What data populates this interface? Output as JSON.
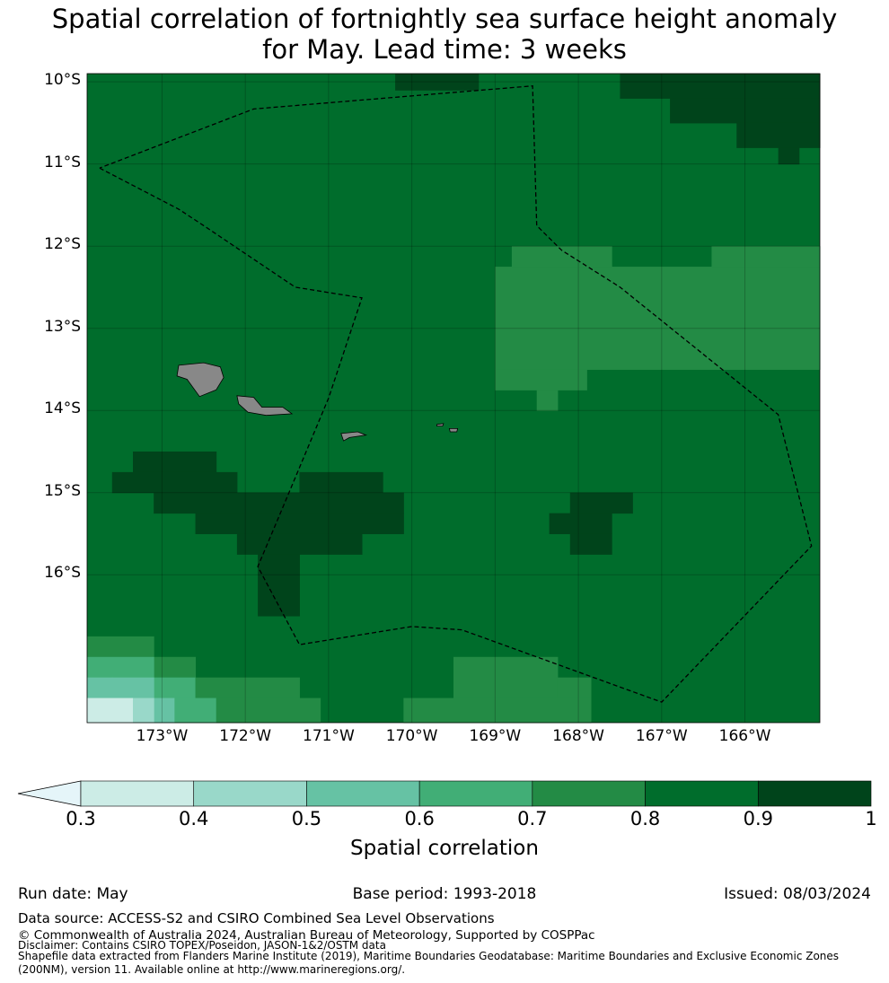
{
  "title": {
    "line1": "Spatial correlation of fortnightly sea surface height anomaly",
    "line2": "for May. Lead time: 3 weeks"
  },
  "map": {
    "lat_labels": [
      "10°S",
      "11°S",
      "12°S",
      "13°S",
      "14°S",
      "15°S",
      "16°S"
    ],
    "lon_labels": [
      "173°W",
      "172°W",
      "171°W",
      "170°W",
      "169°W",
      "168°W",
      "167°W",
      "166°W"
    ],
    "lon_range": [
      -173.9,
      -165.1
    ],
    "lat_range": [
      -17.8,
      -9.9
    ],
    "background_class": 0.8,
    "regions": [
      {
        "lon": [
          -170.2,
          -169.2
        ],
        "lat": [
          -10.1,
          -9.9
        ],
        "value": 0.9
      },
      {
        "lon": [
          -167.5,
          -165.1
        ],
        "lat": [
          -10.2,
          -9.9
        ],
        "value": 0.9
      },
      {
        "lon": [
          -166.9,
          -165.1
        ],
        "lat": [
          -10.5,
          -10.2
        ],
        "value": 0.9
      },
      {
        "lon": [
          -166.1,
          -165.1
        ],
        "lat": [
          -10.8,
          -10.5
        ],
        "value": 0.9
      },
      {
        "lon": [
          -165.6,
          -165.35
        ],
        "lat": [
          -11.0,
          -10.8
        ],
        "value": 0.9
      },
      {
        "lon": [
          -168.8,
          -167.6
        ],
        "lat": [
          -12.25,
          -12.0
        ],
        "value": 0.7
      },
      {
        "lon": [
          -166.4,
          -165.1
        ],
        "lat": [
          -12.25,
          -12.0
        ],
        "value": 0.7
      },
      {
        "lon": [
          -169.0,
          -165.1
        ],
        "lat": [
          -13.5,
          -12.25
        ],
        "value": 0.7
      },
      {
        "lon": [
          -169.0,
          -167.9
        ],
        "lat": [
          -13.75,
          -13.5
        ],
        "value": 0.7
      },
      {
        "lon": [
          -168.5,
          -168.25
        ],
        "lat": [
          -14.0,
          -13.75
        ],
        "value": 0.7
      },
      {
        "lon": [
          -173.35,
          -172.35
        ],
        "lat": [
          -14.75,
          -14.5
        ],
        "value": 0.9
      },
      {
        "lon": [
          -173.6,
          -172.1
        ],
        "lat": [
          -15.0,
          -14.75
        ],
        "value": 0.9
      },
      {
        "lon": [
          -171.35,
          -170.35
        ],
        "lat": [
          -15.0,
          -14.75
        ],
        "value": 0.9
      },
      {
        "lon": [
          -173.1,
          -170.1
        ],
        "lat": [
          -15.25,
          -15.0
        ],
        "value": 0.9
      },
      {
        "lon": [
          -172.6,
          -170.1
        ],
        "lat": [
          -15.5,
          -15.25
        ],
        "value": 0.9
      },
      {
        "lon": [
          -172.1,
          -170.6
        ],
        "lat": [
          -15.75,
          -15.5
        ],
        "value": 0.9
      },
      {
        "lon": [
          -171.85,
          -171.35
        ],
        "lat": [
          -16.0,
          -15.75
        ],
        "value": 0.9
      },
      {
        "lon": [
          -171.85,
          -171.35
        ],
        "lat": [
          -16.5,
          -16.0
        ],
        "value": 0.9
      },
      {
        "lon": [
          -168.1,
          -167.35
        ],
        "lat": [
          -15.25,
          -15.0
        ],
        "value": 0.9
      },
      {
        "lon": [
          -168.35,
          -167.6
        ],
        "lat": [
          -15.5,
          -15.25
        ],
        "value": 0.9
      },
      {
        "lon": [
          -168.1,
          -167.6
        ],
        "lat": [
          -15.75,
          -15.5
        ],
        "value": 0.9
      },
      {
        "lon": [
          -173.9,
          -173.1
        ],
        "lat": [
          -17.0,
          -16.75
        ],
        "value": 0.7
      },
      {
        "lon": [
          -173.1,
          -172.6
        ],
        "lat": [
          -17.25,
          -17.0
        ],
        "value": 0.7
      },
      {
        "lon": [
          -173.9,
          -173.1
        ],
        "lat": [
          -17.25,
          -17.0
        ],
        "value": 0.6
      },
      {
        "lon": [
          -173.1,
          -172.6
        ],
        "lat": [
          -17.5,
          -17.25
        ],
        "value": 0.6
      },
      {
        "lon": [
          -173.9,
          -173.6
        ],
        "lat": [
          -17.5,
          -17.25
        ],
        "value": 0.5
      },
      {
        "lon": [
          -173.6,
          -173.1
        ],
        "lat": [
          -17.5,
          -17.25
        ],
        "value": 0.5
      },
      {
        "lon": [
          -172.6,
          -171.35
        ],
        "lat": [
          -17.5,
          -17.25
        ],
        "value": 0.7
      },
      {
        "lon": [
          -173.1,
          -172.85
        ],
        "lat": [
          -17.8,
          -17.5
        ],
        "value": 0.5
      },
      {
        "lon": [
          -172.85,
          -172.35
        ],
        "lat": [
          -17.8,
          -17.5
        ],
        "value": 0.6
      },
      {
        "lon": [
          -172.35,
          -171.1
        ],
        "lat": [
          -17.8,
          -17.5
        ],
        "value": 0.7
      },
      {
        "lon": [
          -173.9,
          -173.35
        ],
        "lat": [
          -17.8,
          -17.5
        ],
        "value": 0.3
      },
      {
        "lon": [
          -173.35,
          -173.1
        ],
        "lat": [
          -17.8,
          -17.5
        ],
        "value": 0.4
      },
      {
        "lon": [
          -169.5,
          -168.25
        ],
        "lat": [
          -17.5,
          -17.0
        ],
        "value": 0.7
      },
      {
        "lon": [
          -168.25,
          -167.85
        ],
        "lat": [
          -17.8,
          -17.25
        ],
        "value": 0.7
      },
      {
        "lon": [
          -170.1,
          -167.85
        ],
        "lat": [
          -17.8,
          -17.5
        ],
        "value": 0.7
      }
    ],
    "land": [
      {
        "name": "Savai'i",
        "points": [
          [
            -172.8,
            -13.45
          ],
          [
            -172.5,
            -13.42
          ],
          [
            -172.3,
            -13.47
          ],
          [
            -172.26,
            -13.6
          ],
          [
            -172.35,
            -13.75
          ],
          [
            -172.55,
            -13.83
          ],
          [
            -172.7,
            -13.62
          ],
          [
            -172.82,
            -13.58
          ]
        ]
      },
      {
        "name": "Upolu",
        "points": [
          [
            -172.1,
            -13.82
          ],
          [
            -171.9,
            -13.84
          ],
          [
            -171.8,
            -13.96
          ],
          [
            -171.55,
            -13.96
          ],
          [
            -171.44,
            -14.04
          ],
          [
            -171.75,
            -14.06
          ],
          [
            -171.97,
            -14.02
          ],
          [
            -172.08,
            -13.92
          ]
        ]
      },
      {
        "name": "Tutuila",
        "points": [
          [
            -170.85,
            -14.28
          ],
          [
            -170.65,
            -14.26
          ],
          [
            -170.55,
            -14.3
          ],
          [
            -170.75,
            -14.33
          ],
          [
            -170.82,
            -14.37
          ]
        ]
      },
      {
        "name": "Ofu",
        "points": [
          [
            -169.7,
            -14.17
          ],
          [
            -169.62,
            -14.16
          ],
          [
            -169.63,
            -14.19
          ],
          [
            -169.7,
            -14.19
          ]
        ]
      },
      {
        "name": "Ta'u",
        "points": [
          [
            -169.55,
            -14.22
          ],
          [
            -169.45,
            -14.22
          ],
          [
            -169.46,
            -14.26
          ],
          [
            -169.54,
            -14.26
          ]
        ]
      }
    ],
    "eez_boundary": [
      [
        -173.75,
        -11.05
      ],
      [
        -172.8,
        -11.55
      ],
      [
        -172.5,
        -11.75
      ],
      [
        -171.4,
        -12.5
      ],
      [
        -170.6,
        -12.63
      ],
      [
        -171.0,
        -13.85
      ],
      [
        -171.6,
        -15.3
      ],
      [
        -171.85,
        -15.9
      ],
      [
        -171.35,
        -16.85
      ],
      [
        -170.0,
        -16.63
      ],
      [
        -169.4,
        -16.67
      ],
      [
        -167.0,
        -17.55
      ],
      [
        -165.2,
        -15.65
      ],
      [
        -165.6,
        -14.05
      ],
      [
        -167.5,
        -12.5
      ],
      [
        -168.2,
        -12.05
      ],
      [
        -168.5,
        -11.75
      ],
      [
        -168.55,
        -10.05
      ],
      [
        -171.9,
        -10.33
      ],
      [
        -173.75,
        -11.05
      ]
    ]
  },
  "colorbar": {
    "ticks": [
      "0.3",
      "0.4",
      "0.5",
      "0.6",
      "0.7",
      "0.8",
      "0.9",
      "1"
    ],
    "extend_color": "#e5f5f9",
    "colors": [
      "#ccece6",
      "#99d8c9",
      "#66c2a4",
      "#41ae76",
      "#238b45",
      "#006d2c",
      "#00441b"
    ],
    "label": "Spatial correlation"
  },
  "footer": {
    "run_date": "Run date: May",
    "base_period": "Base period: 1993-2018",
    "issued": "Issued: 08/03/2024",
    "data_source": "Data source: ACCESS-S2 and CSIRO Combined Sea Level Observations",
    "copyright": "© Commonwealth of Australia 2024, Australian Bureau of Meteorology, Supported by COSPPac",
    "disclaimer": "Disclaimer: Contains CSIRO TOPEX/Poseidon, JASON-1&2/OSTM data",
    "shapefile_line1": "Shapefile data extracted from Flanders Marine Institute (2019), Maritime Boundaries Geodatabase: Maritime Boundaries and Exclusive Economic Zones",
    "shapefile_line2": "(200NM), version 11. Available online at http://www.marineregions.org/."
  }
}
